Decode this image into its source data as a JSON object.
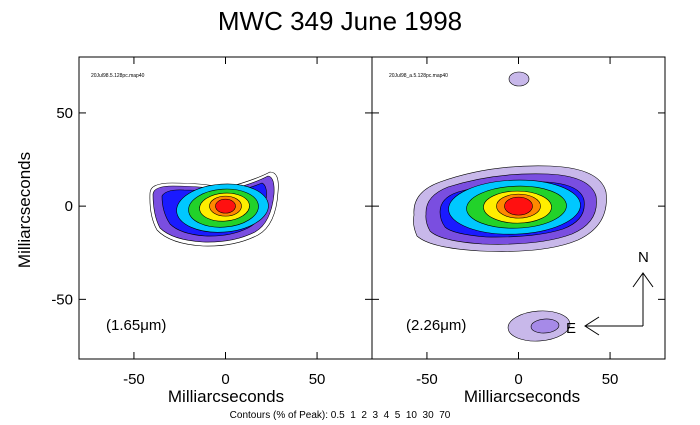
{
  "chart_data": {
    "type": "heatmap",
    "title": "MWC 349 June 1998",
    "caption": "Contours (% of Peak): 0.5  1  2  3  4  5  10  30  70",
    "contour_levels_percent": [
      0.5,
      1,
      2,
      3,
      4,
      5,
      10,
      30,
      70
    ],
    "xlabel": "Milliarcseconds",
    "ylabel": "Milliarcseconds",
    "xlim": [
      -80,
      80
    ],
    "ylim": [
      -82,
      80
    ],
    "x_ticks": [
      -50,
      0,
      50
    ],
    "y_ticks": [
      50,
      0,
      -50
    ],
    "panels": [
      {
        "id": "left",
        "header": "20Jul98.5.128pc.map40",
        "wavelength_label": "(1.65μm)",
        "peak_position": [
          0,
          0
        ]
      },
      {
        "id": "right",
        "header": "20Jul98_a.5.128pc.map40",
        "wavelength_label": "(2.26μm)",
        "peak_position": [
          0,
          0
        ]
      }
    ],
    "compass": {
      "north_label": "N",
      "east_label": "E"
    },
    "colors": {
      "outer": "#c8b8ea",
      "violet": "#7a4ee0",
      "blue": "#1a1aff",
      "cyan": "#00c8ff",
      "green": "#22d22a",
      "yellow": "#ffee00",
      "orange": "#ff8800",
      "red": "#ff1010",
      "peak": "#dd0000"
    }
  }
}
